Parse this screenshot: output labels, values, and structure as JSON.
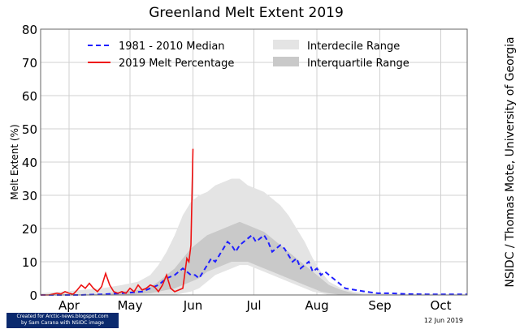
{
  "chart_data": {
    "type": "line",
    "title": "Greenland Melt Extent 2019",
    "ylabel": "Melt Extent (%)",
    "xlabel": "",
    "ylim": [
      0,
      80
    ],
    "yticks": [
      "0",
      "10",
      "20",
      "30",
      "40",
      "50",
      "60",
      "70",
      "80"
    ],
    "xlim": [
      0,
      210
    ],
    "months": [
      {
        "label": "Apr",
        "day": 14
      },
      {
        "label": "May",
        "day": 44
      },
      {
        "label": "Jun",
        "day": 75
      },
      {
        "label": "Jul",
        "day": 105
      },
      {
        "label": "Aug",
        "day": 136
      },
      {
        "label": "Sep",
        "day": 167
      },
      {
        "label": "Oct",
        "day": 197
      }
    ],
    "legend": {
      "median": "1981 - 2010 Median",
      "melt2019": "2019 Melt Percentage",
      "interdecile": "Interdecile Range",
      "interquartile": "Interquartile Range"
    },
    "colors": {
      "median": "#1f1fff",
      "melt2019": "#ee1111",
      "interdecile": "#e4e4e4",
      "interquartile": "#c9c9c9"
    },
    "x": [
      0,
      10,
      20,
      30,
      40,
      48,
      54,
      58,
      62,
      66,
      70,
      74,
      78,
      82,
      86,
      90,
      94,
      98,
      102,
      106,
      110,
      114,
      118,
      122,
      126,
      130,
      134,
      138,
      142,
      148,
      154,
      160,
      168,
      176,
      186,
      196,
      210
    ],
    "interdecile": {
      "low": [
        0,
        0,
        0,
        0,
        0,
        0,
        0,
        0,
        0,
        0,
        0.5,
        1,
        2,
        4,
        6,
        7,
        8,
        9,
        9,
        8,
        7,
        6,
        5,
        4,
        3,
        2,
        1,
        0.5,
        0,
        0,
        0,
        0,
        0,
        0,
        0,
        0,
        0
      ],
      "high": [
        0.5,
        1,
        1.5,
        2,
        3,
        4,
        6,
        9,
        13,
        18,
        24,
        28,
        30,
        31,
        33,
        34,
        35,
        35,
        33,
        32,
        31,
        29,
        27,
        24,
        20,
        16,
        11,
        7,
        4,
        2,
        1,
        0.5,
        0.5,
        0,
        0,
        0,
        0
      ]
    },
    "interquartile": {
      "low": [
        0,
        0,
        0,
        0,
        0,
        0.3,
        0.5,
        1,
        1.5,
        2,
        3,
        4,
        5,
        7,
        8,
        9,
        10,
        10,
        10,
        9,
        8,
        7,
        6,
        5,
        4,
        3,
        2,
        1,
        0.5,
        0,
        0,
        0,
        0,
        0,
        0,
        0,
        0
      ],
      "high": [
        0,
        0,
        0,
        0.3,
        1,
        1.5,
        2.5,
        4,
        6,
        8,
        11,
        14,
        16,
        18,
        19,
        20,
        21,
        22,
        21,
        20,
        19,
        17,
        15,
        13,
        11,
        9,
        7,
        5,
        3,
        1.5,
        0.5,
        0,
        0,
        0,
        0,
        0,
        0
      ]
    },
    "series": [
      {
        "name": "1981 - 2010 Median",
        "x": [
          0,
          10,
          20,
          30,
          40,
          46,
          50,
          54,
          58,
          62,
          66,
          70,
          72,
          74,
          76,
          78,
          80,
          82,
          84,
          86,
          88,
          90,
          92,
          94,
          96,
          98,
          100,
          102,
          104,
          106,
          108,
          110,
          112,
          114,
          116,
          118,
          120,
          122,
          124,
          126,
          128,
          130,
          132,
          134,
          136,
          138,
          140,
          142,
          144,
          146,
          150,
          155,
          160,
          166,
          172,
          180,
          190,
          200,
          210
        ],
        "y": [
          0,
          0,
          0,
          0.2,
          0.5,
          0.8,
          1,
          2,
          3,
          5,
          6,
          8,
          7,
          6,
          6,
          5,
          7,
          9,
          11,
          10,
          12,
          14,
          16,
          15,
          13,
          15,
          16,
          17,
          18,
          16,
          17,
          18,
          16,
          13,
          14,
          15,
          14,
          12,
          10,
          11,
          8,
          9,
          10,
          7,
          8,
          6,
          7,
          6,
          5,
          4,
          2,
          1.5,
          1,
          0.5,
          0.5,
          0.3,
          0.2,
          0.2,
          0.2
        ]
      },
      {
        "name": "2019 Melt Percentage",
        "x": [
          0,
          4,
          8,
          10,
          12,
          14,
          16,
          18,
          20,
          22,
          24,
          26,
          28,
          30,
          32,
          34,
          36,
          38,
          40,
          42,
          44,
          46,
          48,
          50,
          52,
          54,
          56,
          58,
          60,
          62,
          64,
          66,
          68,
          70,
          72,
          73,
          74,
          75
        ],
        "y": [
          0,
          0,
          0.5,
          0.3,
          1,
          0.5,
          0.2,
          1.5,
          3,
          2,
          3.5,
          2,
          1,
          2.5,
          6.5,
          3,
          1,
          0.5,
          1,
          0.5,
          2,
          1,
          3,
          1.5,
          2,
          3,
          2.5,
          1,
          3,
          6,
          2,
          1,
          1.5,
          2,
          11,
          10,
          15,
          44
        ]
      }
    ]
  },
  "side_credit": "NSIDC / Thomas Mote, University of Georgia",
  "date_stamp": "12 Jun 2019",
  "credit_box": {
    "line1": "Created for Arctic-news.blogspot.com",
    "line2": "by Sam Carana with NSIDC image"
  }
}
